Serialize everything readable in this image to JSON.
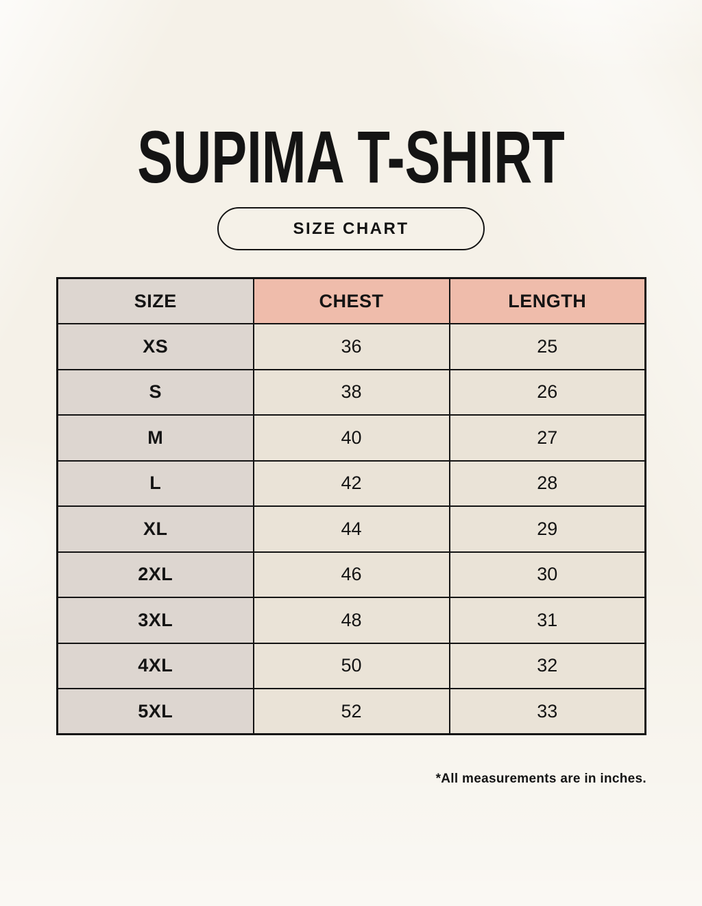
{
  "header": {
    "title": "SUPIMA T-SHIRT",
    "badge_label": "SIZE CHART"
  },
  "table": {
    "columns": [
      "SIZE",
      "CHEST",
      "LENGTH"
    ],
    "rows": [
      {
        "size": "XS",
        "chest": "36",
        "length": "25"
      },
      {
        "size": "S",
        "chest": "38",
        "length": "26"
      },
      {
        "size": "M",
        "chest": "40",
        "length": "27"
      },
      {
        "size": "L",
        "chest": "42",
        "length": "28"
      },
      {
        "size": "XL",
        "chest": "44",
        "length": "29"
      },
      {
        "size": "2XL",
        "chest": "46",
        "length": "30"
      },
      {
        "size": "3XL",
        "chest": "48",
        "length": "31"
      },
      {
        "size": "4XL",
        "chest": "50",
        "length": "32"
      },
      {
        "size": "5XL",
        "chest": "52",
        "length": "33"
      }
    ],
    "footnote": "*All measurements are in inches."
  },
  "colors": {
    "page_background": "#f5f1e8",
    "accent_header": "#efbcab",
    "size_column": "#ddd6d0",
    "value_cell": "#eae3d7",
    "border": "#141414",
    "text": "#141414"
  },
  "chart_data": {
    "type": "table",
    "title": "SUPIMA T-SHIRT",
    "subtitle": "SIZE CHART",
    "columns": [
      "SIZE",
      "CHEST",
      "LENGTH"
    ],
    "rows": [
      [
        "XS",
        36,
        25
      ],
      [
        "S",
        38,
        26
      ],
      [
        "M",
        40,
        27
      ],
      [
        "L",
        42,
        28
      ],
      [
        "XL",
        44,
        29
      ],
      [
        "2XL",
        46,
        30
      ],
      [
        "3XL",
        48,
        31
      ],
      [
        "4XL",
        50,
        32
      ],
      [
        "5XL",
        52,
        33
      ]
    ],
    "note": "*All measurements are in inches.",
    "units": "inches",
    "layout": {
      "header_accent_columns": [
        "CHEST",
        "LENGTH"
      ],
      "grid": true
    }
  }
}
